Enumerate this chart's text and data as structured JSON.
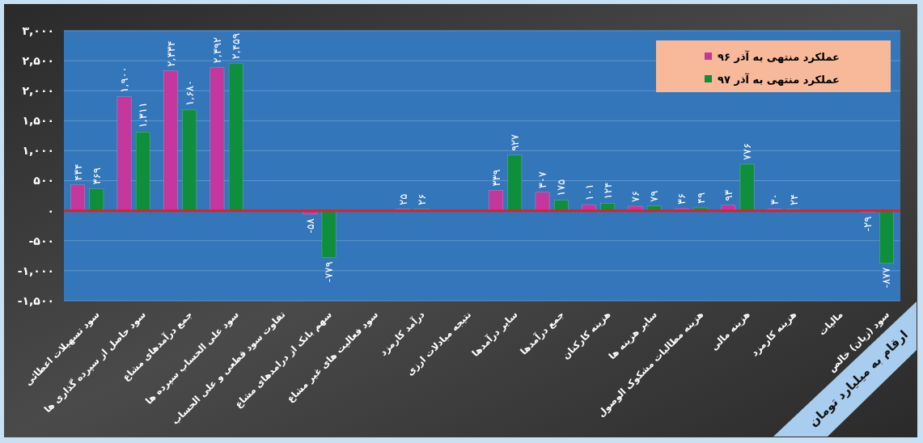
{
  "chart_data": {
    "type": "bar",
    "categories": [
      "سود تسهیلات اعطائی",
      "سود حاصل از سپرده گذاری ها",
      "جمع درآمدهای مشاع",
      "سود علی الحساب سپرده ها",
      "تفاوت سود قطعی و علی الحساب",
      "سهم بانک از درامدهای مشاع",
      "سود فعالیت های غیر مشاع",
      "درآمد کارمزد",
      "نتیجه مبادلات ارزی",
      "سایر درآمدها",
      "جمع درآمدها",
      "هزینه کارکنان",
      "سایر هزینه ها",
      "هزینه مطالبات مشکوک الوصول",
      "هزینه مالی",
      "هزینه کارمزد",
      "مالیات",
      "سود (زیان) خالص"
    ],
    "series": [
      {
        "name": "عملکرد منتهی به آذر ۹۶",
        "color": "#c4379c",
        "values": [
          434,
          1900,
          2334,
          2392,
          null,
          -58,
          null,
          25,
          null,
          339,
          307,
          101,
          76,
          36,
          93,
          30,
          null,
          -29
        ],
        "value_labels": [
          "۴۳۴",
          "۱,۹۰۰",
          "۲,۳۳۴",
          "۲,۳۹۲",
          null,
          "-۵۸",
          null,
          "۲۵",
          null,
          "۳۳۹",
          "۳۰۷",
          "۱۰۱",
          "۷۶",
          "۳۶",
          "۹۳",
          "۳۰",
          null,
          "-۲۹"
        ]
      },
      {
        "name": "عملکرد منتهی به آذر ۹۷",
        "color": "#0f8f3c",
        "values": [
          369,
          1311,
          1680,
          2459,
          null,
          -779,
          null,
          26,
          null,
          927,
          175,
          124,
          79,
          49,
          776,
          24,
          null,
          -877
        ],
        "value_labels": [
          "۳۶۹",
          "۱,۳۱۱",
          "۱,۶۸۰",
          "۲,۴۵۹",
          null,
          "-۷۷۹",
          null,
          "۲۶",
          null,
          "۹۲۷",
          "۱۷۵",
          "۱۲۴",
          "۷۹",
          "۴۹",
          "۷۷۶",
          "۲۴",
          null,
          "-۸۷۷"
        ]
      }
    ],
    "ylim": [
      -1500,
      3000
    ],
    "yticks": [
      {
        "value": -1500,
        "label": "-۱,۵۰۰"
      },
      {
        "value": -1000,
        "label": "-۱,۰۰۰"
      },
      {
        "value": -500,
        "label": "-۵۰۰"
      },
      {
        "value": 0,
        "label": "۰"
      },
      {
        "value": 500,
        "label": "۵۰۰"
      },
      {
        "value": 1000,
        "label": "۱,۰۰۰"
      },
      {
        "value": 1500,
        "label": "۱,۵۰۰"
      },
      {
        "value": 2000,
        "label": "۲,۰۰۰"
      },
      {
        "value": 2500,
        "label": "۲,۵۰۰"
      },
      {
        "value": 3000,
        "label": "۳,۰۰۰"
      }
    ],
    "grid": "y",
    "legend": "top right",
    "ref_lines": [
      {
        "axis": "y",
        "value": 0,
        "color": "#e01f26"
      }
    ],
    "annotations": [
      "ارقام به میلیارد تومان"
    ]
  }
}
